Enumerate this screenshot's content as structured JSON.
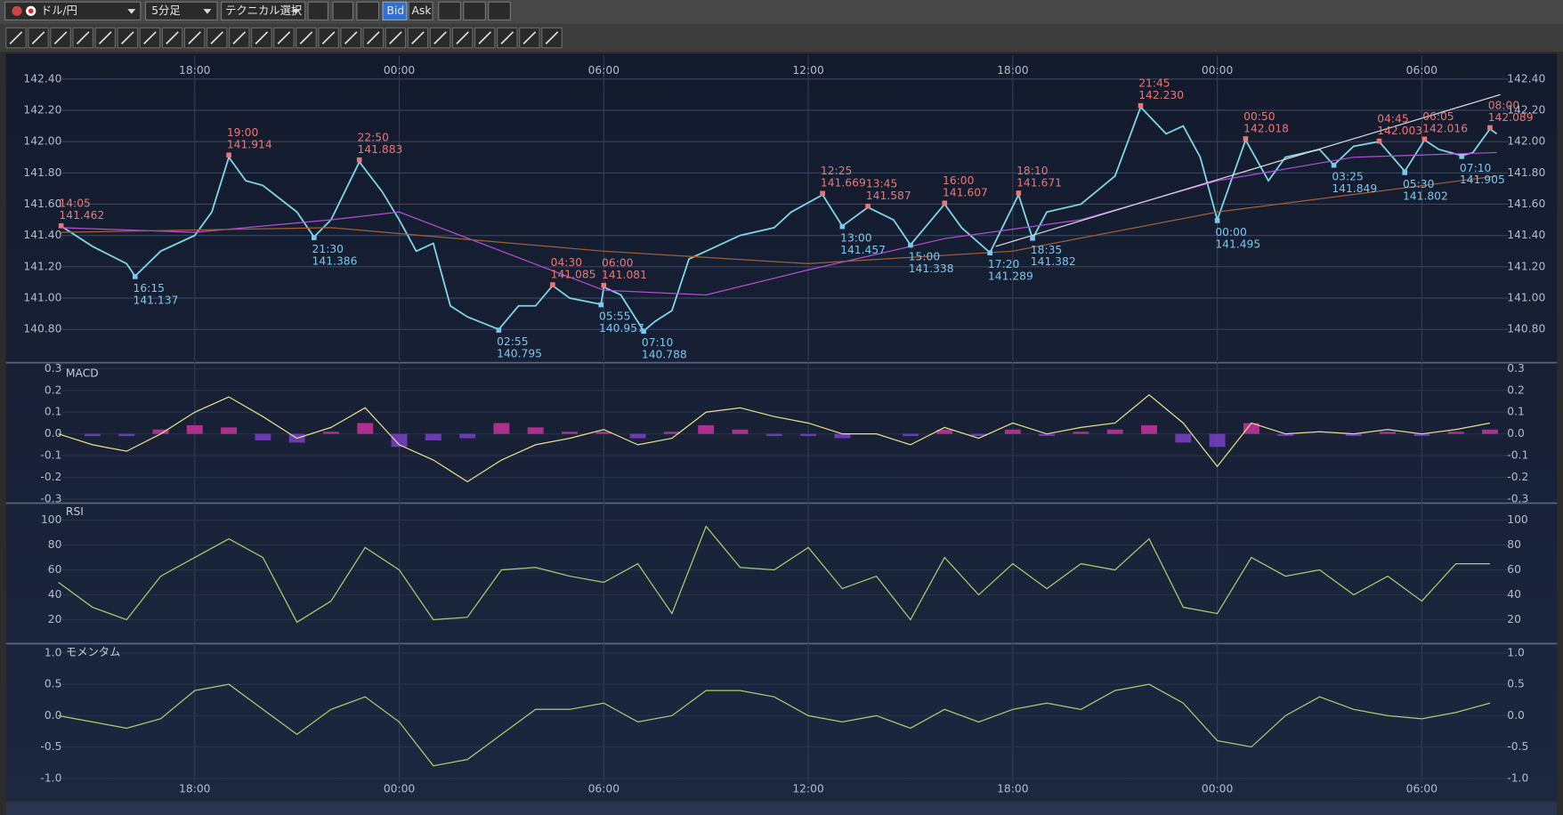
{
  "toolbar": {
    "pair": "ドル/円",
    "timeframe": "5分足",
    "technical": "テクニカル選択",
    "bid": "Bid",
    "ask": "Ask"
  },
  "chart_data": [
    {
      "type": "line",
      "xlim": [
        14.1,
        56.3
      ],
      "xticks": [
        {
          "value": 18,
          "label": "18:00"
        },
        {
          "value": 24,
          "label": "00:00"
        },
        {
          "value": 30,
          "label": "06:00"
        },
        {
          "value": 36,
          "label": "12:00"
        },
        {
          "value": 42,
          "label": "18:00"
        },
        {
          "value": 48,
          "label": "00:00"
        },
        {
          "value": 54,
          "label": "06:00"
        }
      ],
      "ylim": [
        140.6,
        142.51
      ],
      "yticks": [
        {
          "value": 142.4,
          "label": "142.40"
        },
        {
          "value": 142.2,
          "label": "142.20"
        },
        {
          "value": 142,
          "label": "142.00"
        },
        {
          "value": 141.8,
          "label": "141.80"
        },
        {
          "value": 141.6,
          "label": "141.60"
        },
        {
          "value": 141.4,
          "label": "141.40"
        },
        {
          "value": 141.2,
          "label": "141.20"
        },
        {
          "value": 141,
          "label": "141.00"
        },
        {
          "value": 140.8,
          "label": "140.80"
        }
      ],
      "grid": true,
      "series": [
        {
          "color": "#7fd6e8",
          "kind": "line",
          "x": [
            14.08,
            15,
            16,
            16.25,
            17,
            18,
            18.5,
            19,
            19.5,
            20,
            21,
            21.5,
            22,
            22.83,
            23.5,
            24,
            24.5,
            25,
            25.5,
            26,
            26.92,
            27.5,
            28,
            28.5,
            29,
            29.92,
            30,
            30.5,
            31.17,
            31.5,
            32,
            32.5,
            33,
            34,
            35,
            35.5,
            36.42,
            37,
            37.75,
            38.5,
            39,
            40,
            40.5,
            41.33,
            42.17,
            42.58,
            43,
            44,
            45,
            45.75,
            46.5,
            47,
            47.5,
            48,
            48.83,
            49.5,
            50,
            51,
            51.42,
            52,
            52.75,
            53.5,
            54.08,
            54.5,
            55.17,
            55.5,
            56,
            56.2
          ],
          "values": [
            141.46,
            141.33,
            141.22,
            141.14,
            141.3,
            141.4,
            141.55,
            141.9,
            141.75,
            141.72,
            141.55,
            141.39,
            141.5,
            141.87,
            141.68,
            141.5,
            141.3,
            141.35,
            140.95,
            140.88,
            140.8,
            140.95,
            140.95,
            141.08,
            141,
            140.96,
            141.07,
            141.02,
            140.79,
            140.85,
            140.92,
            141.25,
            141.3,
            141.4,
            141.45,
            141.55,
            141.66,
            141.46,
            141.58,
            141.5,
            141.34,
            141.6,
            141.45,
            141.29,
            141.66,
            141.38,
            141.55,
            141.6,
            141.78,
            142.22,
            142.05,
            142.1,
            141.9,
            141.5,
            142.01,
            141.75,
            141.9,
            141.95,
            141.85,
            141.97,
            142,
            141.81,
            142.01,
            141.95,
            141.91,
            141.93,
            142.08,
            142.05
          ]
        },
        {
          "color": "#b44fd6",
          "kind": "line",
          "x": [
            14.08,
            18,
            22,
            24,
            27,
            30,
            33,
            36,
            40,
            44,
            48,
            52,
            56.2
          ],
          "values": [
            141.45,
            141.42,
            141.5,
            141.55,
            141.3,
            141.05,
            141.02,
            141.18,
            141.38,
            141.5,
            141.75,
            141.9,
            141.93
          ]
        },
        {
          "color": "#a0603a",
          "kind": "line",
          "x": [
            14.08,
            22,
            30,
            36,
            42,
            48,
            56.2
          ],
          "values": [
            141.42,
            141.45,
            141.3,
            141.22,
            141.3,
            141.55,
            141.78
          ]
        },
        {
          "color": "#d8d8e0",
          "kind": "line",
          "x": [
            41.5,
            56.3
          ],
          "values": [
            141.33,
            142.3
          ]
        }
      ],
      "annotations": [
        {
          "x": 14.08,
          "time": "14:05",
          "value": 141.462,
          "kind": "high"
        },
        {
          "x": 19,
          "time": "19:00",
          "value": 141.914,
          "kind": "high"
        },
        {
          "x": 22.83,
          "time": "22:50",
          "value": 141.883,
          "kind": "high"
        },
        {
          "x": 28.5,
          "time": "04:30",
          "value": 141.085,
          "kind": "high"
        },
        {
          "x": 30,
          "time": "06:00",
          "value": 141.081,
          "kind": "high"
        },
        {
          "x": 36.42,
          "time": "12:25",
          "value": 141.669,
          "kind": "high"
        },
        {
          "x": 37.75,
          "time": "13:45",
          "value": 141.587,
          "kind": "high"
        },
        {
          "x": 40,
          "time": "16:00",
          "value": 141.607,
          "kind": "high"
        },
        {
          "x": 42.17,
          "time": "18:10",
          "value": 141.671,
          "kind": "high"
        },
        {
          "x": 45.75,
          "time": "21:45",
          "value": 142.23,
          "value_label": "142.230",
          "kind": "high"
        },
        {
          "x": 48.83,
          "time": "00:50",
          "value": 142.018,
          "kind": "high"
        },
        {
          "x": 52.75,
          "time": "04:45",
          "value": 142.003,
          "kind": "high"
        },
        {
          "x": 54.08,
          "time": "06:05",
          "value": 142.016,
          "kind": "high"
        },
        {
          "x": 56,
          "time": "08:00",
          "value": 142.089,
          "kind": "high"
        },
        {
          "x": 16.25,
          "time": "16:15",
          "value": 141.137,
          "kind": "low"
        },
        {
          "x": 21.5,
          "time": "21:30",
          "value": 141.386,
          "kind": "low"
        },
        {
          "x": 26.92,
          "time": "02:55",
          "value": 140.795,
          "kind": "low"
        },
        {
          "x": 29.92,
          "time": "05:55",
          "value": 140.957,
          "kind": "low"
        },
        {
          "x": 31.17,
          "time": "07:10",
          "value": 140.788,
          "kind": "low"
        },
        {
          "x": 37,
          "time": "13:00",
          "value": 141.457,
          "kind": "low"
        },
        {
          "x": 39,
          "time": "15:00",
          "value": 141.338,
          "kind": "low"
        },
        {
          "x": 41.33,
          "time": "17:20",
          "value": 141.289,
          "kind": "low"
        },
        {
          "x": 42.58,
          "time": "18:35",
          "value": 141.382,
          "kind": "low"
        },
        {
          "x": 48,
          "time": "00:00",
          "value": 141.495,
          "kind": "low"
        },
        {
          "x": 51.42,
          "time": "03:25",
          "value": 141.849,
          "kind": "low"
        },
        {
          "x": 53.5,
          "time": "05:30",
          "value": 141.802,
          "kind": "low"
        },
        {
          "x": 55.17,
          "time": "07:10",
          "value": 141.905,
          "kind": "low"
        }
      ]
    },
    {
      "type": "macd",
      "title": "MACD",
      "ylim": [
        -0.305,
        0.305
      ],
      "yticks": [
        0.3,
        0.2,
        0.1,
        {
          "value": 0,
          "label": "0.0"
        },
        -0.1,
        -0.2,
        -0.3
      ],
      "grid": true,
      "series": [
        {
          "kind": "bar",
          "color": "#c8329e",
          "negative_color": "#7a40c8",
          "x": [
            14,
            15,
            16,
            17,
            18,
            19,
            20,
            21,
            22,
            23,
            24,
            25,
            26,
            27,
            28,
            29,
            30,
            31,
            32,
            33,
            34,
            35,
            36,
            37,
            38,
            39,
            40,
            41,
            42,
            43,
            44,
            45,
            46,
            47,
            48,
            49,
            50,
            51,
            52,
            53,
            54,
            55,
            56
          ],
          "values": [
            0,
            -0.01,
            -0.01,
            0.02,
            0.04,
            0.03,
            -0.03,
            -0.04,
            0.01,
            0.05,
            -0.06,
            -0.03,
            -0.02,
            0.05,
            0.03,
            0.01,
            0.01,
            -0.02,
            0.01,
            0.04,
            0.02,
            -0.01,
            -0.01,
            -0.02,
            0,
            -0.01,
            0.02,
            -0.01,
            0.02,
            -0.01,
            0.01,
            0.02,
            0.04,
            -0.04,
            -0.06,
            0.05,
            -0.01,
            0,
            -0.01,
            0.01,
            -0.01,
            0.01,
            0.02
          ]
        },
        {
          "kind": "line",
          "color": "#e6e28a",
          "x": [
            14,
            15,
            16,
            17,
            18,
            19,
            20,
            21,
            22,
            23,
            24,
            25,
            26,
            27,
            28,
            29,
            30,
            31,
            32,
            33,
            34,
            35,
            36,
            37,
            38,
            39,
            40,
            41,
            42,
            43,
            44,
            45,
            46,
            47,
            48,
            49,
            50,
            51,
            52,
            53,
            54,
            55,
            56
          ],
          "values": [
            0,
            -0.05,
            -0.08,
            0,
            0.1,
            0.17,
            0.08,
            -0.02,
            0.03,
            0.12,
            -0.05,
            -0.12,
            -0.22,
            -0.12,
            -0.05,
            -0.02,
            0.02,
            -0.05,
            -0.02,
            0.1,
            0.12,
            0.08,
            0.05,
            0,
            0,
            -0.05,
            0.03,
            -0.02,
            0.05,
            0,
            0.03,
            0.05,
            0.18,
            0.05,
            -0.15,
            0.05,
            0,
            0.01,
            0,
            0.02,
            0,
            0.02,
            0.05
          ]
        }
      ]
    },
    {
      "type": "line",
      "title": "RSI",
      "ylim": [
        1.6,
        111.2
      ],
      "yticks": [
        100,
        80,
        60,
        40,
        20
      ],
      "grid": true,
      "series": [
        {
          "kind": "line",
          "color": "#a8d070",
          "x": [
            14,
            15,
            16,
            17,
            18,
            19,
            20,
            21,
            22,
            23,
            24,
            25,
            26,
            27,
            28,
            29,
            30,
            31,
            32,
            33,
            34,
            35,
            36,
            37,
            38,
            39,
            40,
            41,
            42,
            43,
            44,
            45,
            46,
            47,
            48,
            49,
            50,
            51,
            52,
            53,
            54,
            55,
            56
          ],
          "values": [
            50,
            30,
            20,
            55,
            70,
            85,
            70,
            18,
            35,
            78,
            60,
            20,
            22,
            60,
            62,
            55,
            50,
            65,
            25,
            95,
            62,
            60,
            78,
            45,
            55,
            20,
            70,
            40,
            65,
            45,
            65,
            60,
            85,
            30,
            25,
            70,
            55,
            60,
            40,
            55,
            35,
            65,
            65
          ]
        }
      ]
    },
    {
      "type": "line",
      "title": "モメンタム",
      "ylim": [
        -1.06,
        1.1
      ],
      "yticks": [
        {
          "value": 1,
          "label": "1.0"
        },
        0.5,
        {
          "value": 0,
          "label": "0.0"
        },
        -0.5,
        {
          "value": -1,
          "label": "-1.0"
        }
      ],
      "grid": true,
      "series": [
        {
          "kind": "line",
          "color": "#a8d070",
          "x": [
            14,
            15,
            16,
            17,
            18,
            19,
            20,
            21,
            22,
            23,
            24,
            25,
            26,
            27,
            28,
            29,
            30,
            31,
            32,
            33,
            34,
            35,
            36,
            37,
            38,
            39,
            40,
            41,
            42,
            43,
            44,
            45,
            46,
            47,
            48,
            49,
            50,
            51,
            52,
            53,
            54,
            55,
            56
          ],
          "values": [
            0,
            -0.1,
            -0.2,
            -0.05,
            0.4,
            0.5,
            0.1,
            -0.3,
            0.1,
            0.3,
            -0.1,
            -0.8,
            -0.7,
            -0.3,
            0.1,
            0.1,
            0.2,
            -0.1,
            0,
            0.4,
            0.4,
            0.3,
            0,
            -0.1,
            0,
            -0.2,
            0.1,
            -0.1,
            0.1,
            0.2,
            0.1,
            0.4,
            0.5,
            0.2,
            -0.4,
            -0.5,
            0,
            0.3,
            0.1,
            0,
            -0.05,
            0.05,
            0.2
          ]
        }
      ]
    }
  ]
}
